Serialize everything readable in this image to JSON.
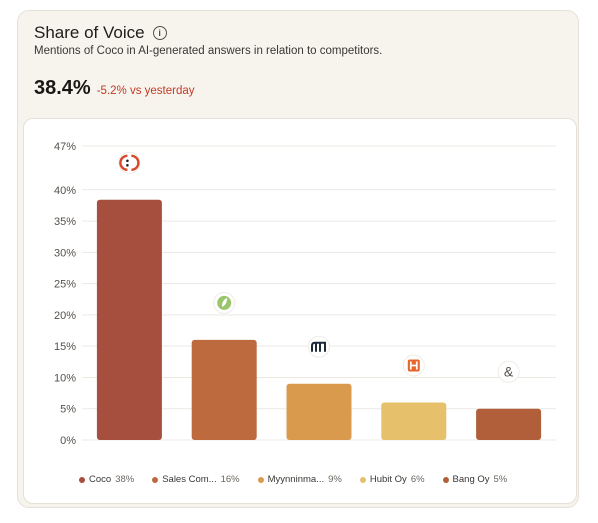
{
  "header": {
    "title": "Share of Voice",
    "subtitle": "Mentions of Coco in AI-generated answers in relation to competitors.",
    "metric": "38.4%",
    "delta": "-5.2% vs yesterday"
  },
  "colors": {
    "accent_down": "#c43a24"
  },
  "chart_data": {
    "type": "bar",
    "categories": [
      "Coco",
      "Sales Com...",
      "Myynninma...",
      "Hubit Oy",
      "Bang Oy"
    ],
    "values": [
      38.4,
      16,
      9,
      6,
      5
    ],
    "colors": [
      "#a64f3f",
      "#bd6b3e",
      "#d99a4d",
      "#e6c06b",
      "#b05f3a"
    ],
    "logos": [
      "coco-logo-icon",
      "leaf-logo-icon",
      "myynninmaa-logo-icon",
      "hubit-logo-icon",
      "ampersand-logo-icon"
    ],
    "y_ticks": [
      "0%",
      "5%",
      "10%",
      "15%",
      "20%",
      "25%",
      "30%",
      "35%",
      "40%",
      "47%"
    ],
    "y_tick_values": [
      0,
      5,
      10,
      15,
      20,
      25,
      30,
      35,
      40,
      47
    ],
    "ylim": [
      0,
      47
    ],
    "grid": true,
    "legend": [
      {
        "label": "Coco",
        "value": "38%"
      },
      {
        "label": "Sales Com...",
        "value": "16%"
      },
      {
        "label": "Myynninma...",
        "value": "9%"
      },
      {
        "label": "Hubit Oy",
        "value": "6%"
      },
      {
        "label": "Bang Oy",
        "value": "5%"
      }
    ],
    "legend_position": "bottom"
  }
}
